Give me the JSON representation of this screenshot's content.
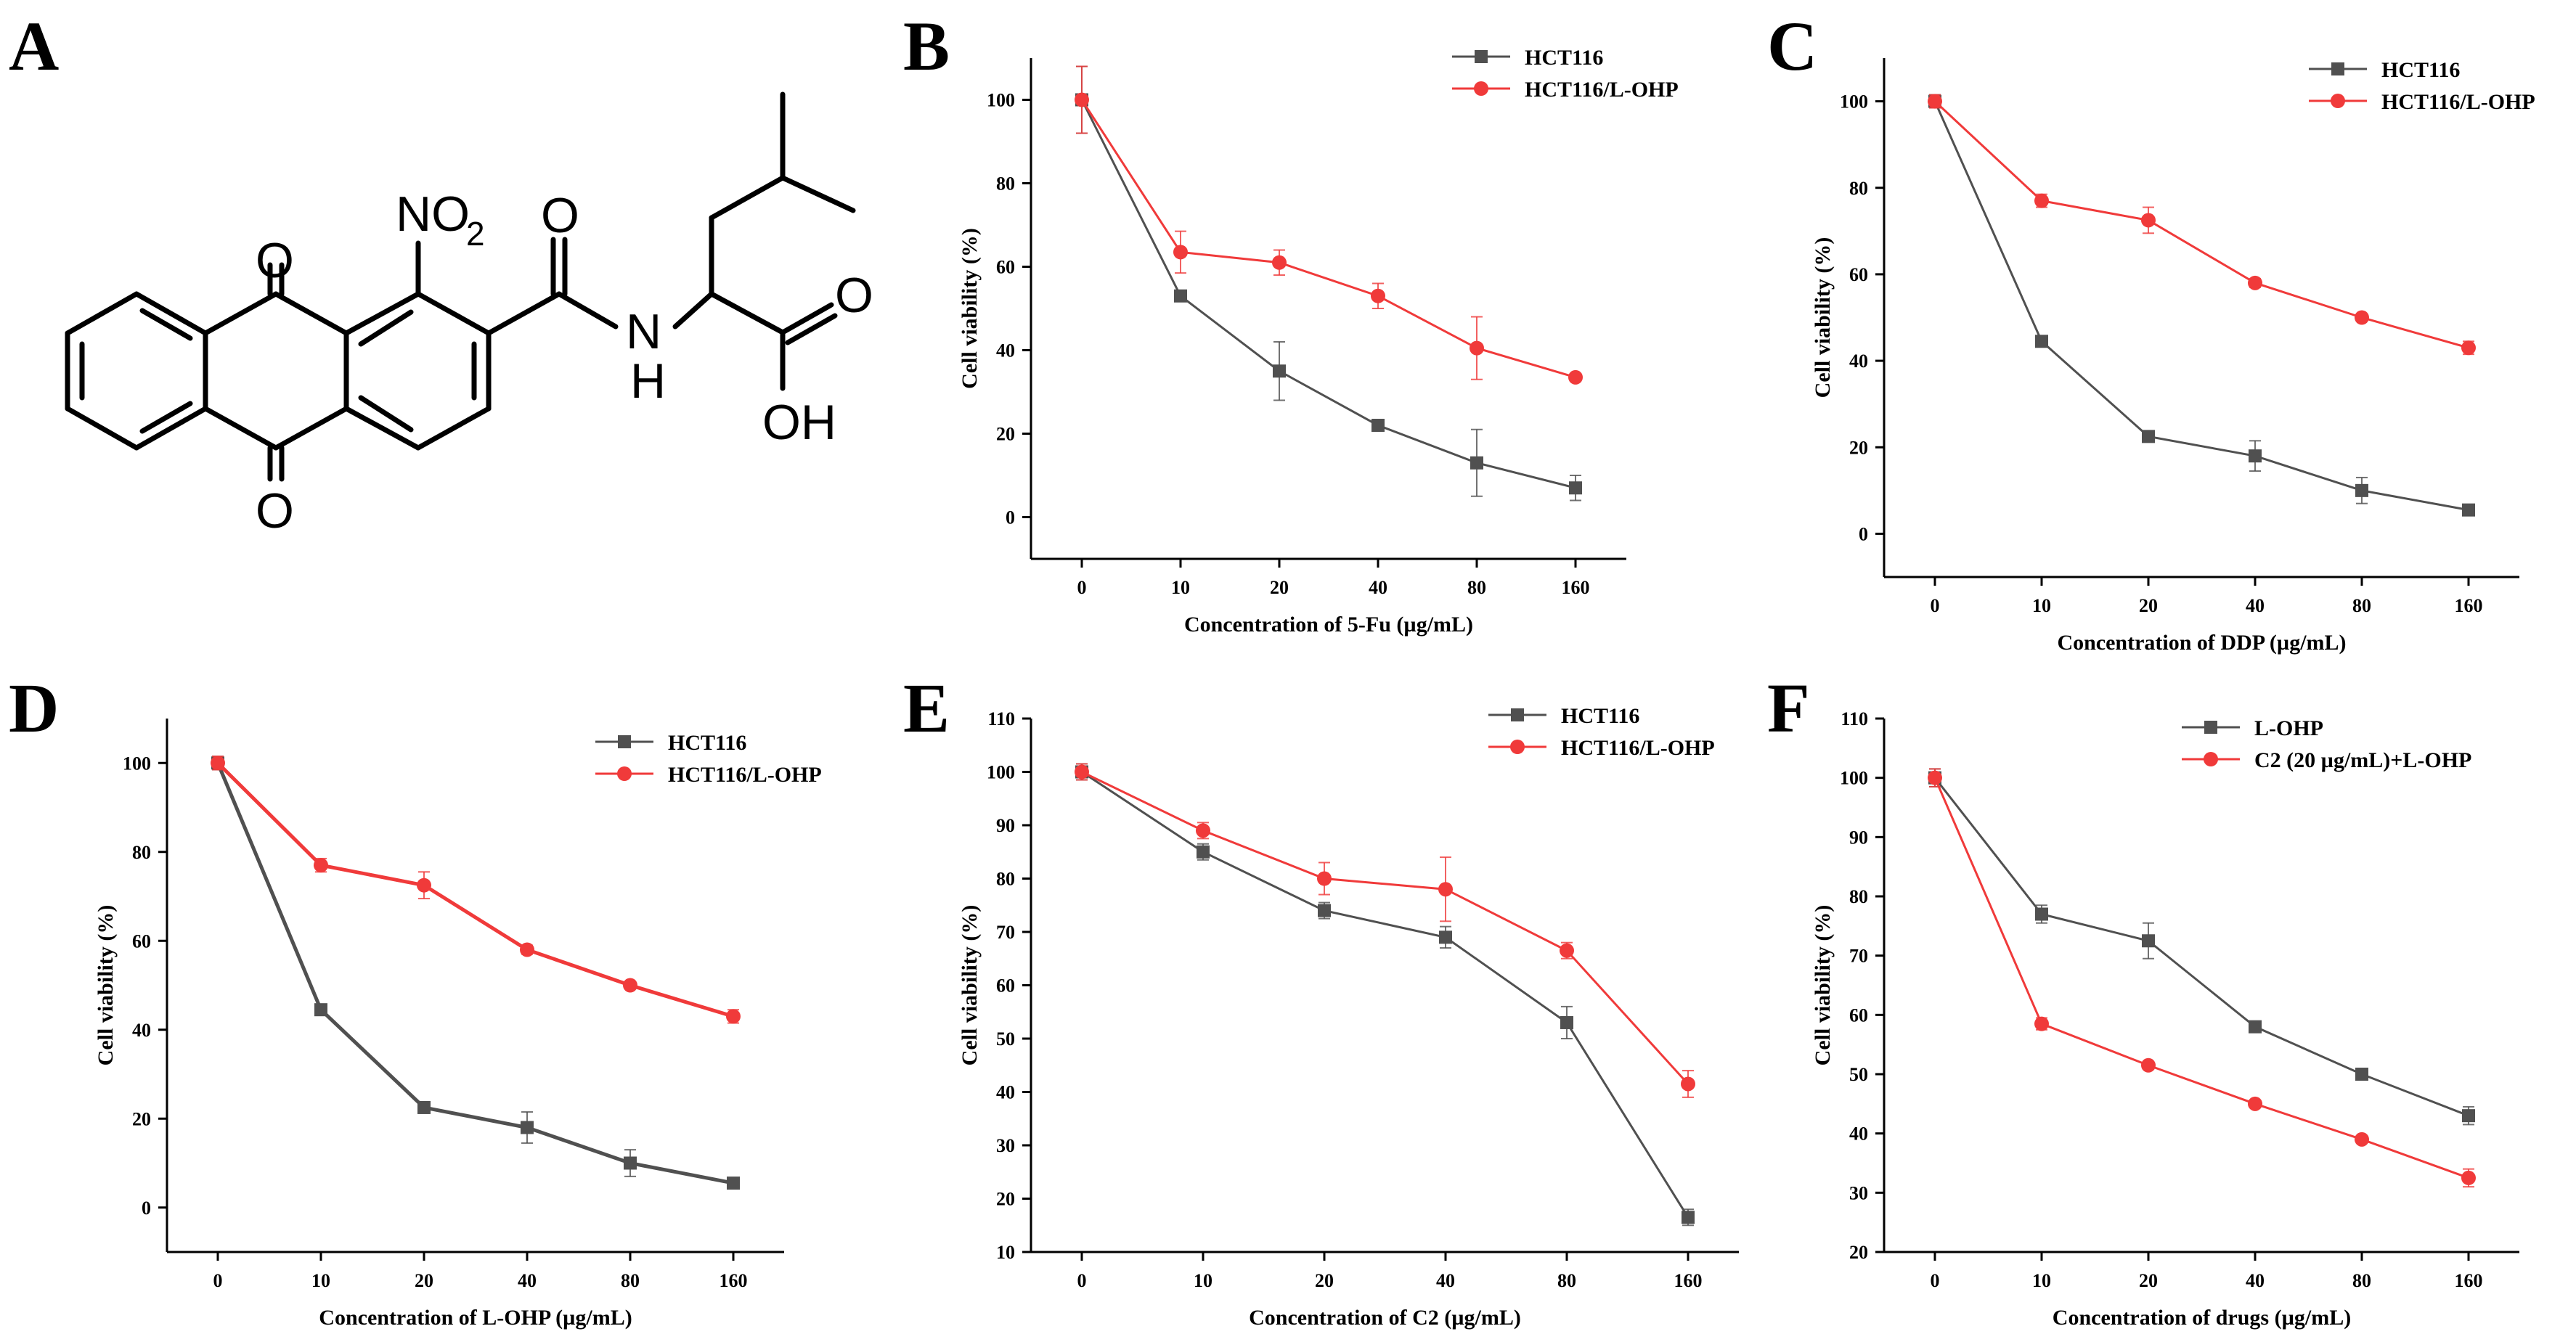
{
  "panels": {
    "A": "A",
    "B": "B",
    "C": "C",
    "D": "D",
    "E": "E",
    "F": "F"
  },
  "structure": {
    "atoms": {
      "O_top": "O",
      "O_bottom": "O",
      "NO": "NO",
      "sub2": "2",
      "O_amide": "O",
      "N": "N",
      "H": "H",
      "O_acid": "O",
      "OH": "OH"
    }
  },
  "chart_data": [
    {
      "panel": "B",
      "type": "line",
      "categories": [
        "0",
        "10",
        "20",
        "40",
        "80",
        "160"
      ],
      "xlabel": "Concentration of 5-Fu (µg/mL)",
      "ylabel": "Cell viability (%)",
      "yticks": [
        0,
        20,
        40,
        60,
        80,
        100
      ],
      "ylim": [
        -10,
        110
      ],
      "series": [
        {
          "name": "HCT116",
          "marker": "square",
          "color": "#505050",
          "values": [
            100,
            53,
            35,
            22,
            13,
            7
          ],
          "errors": [
            8,
            1,
            7,
            1,
            8,
            3
          ]
        },
        {
          "name": "HCT116/L-OHP",
          "marker": "circle",
          "color": "#f03a3a",
          "values": [
            100,
            63.5,
            61,
            53,
            40.5,
            33.5
          ],
          "errors": [
            8,
            5,
            3,
            3,
            7.5,
            0.5
          ]
        }
      ],
      "legend": "top-right"
    },
    {
      "panel": "C",
      "type": "line",
      "categories": [
        "0",
        "10",
        "20",
        "40",
        "80",
        "160"
      ],
      "xlabel": "Concentration of DDP (µg/mL)",
      "ylabel": "Cell viability (%)",
      "yticks": [
        0,
        20,
        40,
        60,
        80,
        100
      ],
      "ylim": [
        -10,
        110
      ],
      "series": [
        {
          "name": "HCT116",
          "marker": "square",
          "color": "#505050",
          "values": [
            100,
            44.5,
            22.5,
            18,
            10,
            5.5
          ],
          "errors": [
            1.5,
            1,
            1,
            3.5,
            3,
            0.5
          ]
        },
        {
          "name": "HCT116/L-OHP",
          "marker": "circle",
          "color": "#f03a3a",
          "values": [
            100,
            77,
            72.5,
            58,
            50,
            43
          ],
          "errors": [
            1.5,
            1.5,
            3,
            1,
            0.5,
            1.5
          ]
        }
      ],
      "legend": "top-right"
    },
    {
      "panel": "D",
      "type": "line",
      "categories": [
        "0",
        "10",
        "20",
        "40",
        "80",
        "160"
      ],
      "xlabel": "Concentration of L-OHP (µg/mL)",
      "ylabel": "Cell viability (%)",
      "yticks": [
        0,
        20,
        40,
        60,
        80,
        100
      ],
      "ylim": [
        -10,
        110
      ],
      "series": [
        {
          "name": "HCT116",
          "marker": "square",
          "color": "#505050",
          "values": [
            100,
            44.5,
            22.5,
            18,
            10,
            5.5
          ],
          "errors": [
            1.5,
            1,
            1,
            3.5,
            3,
            0.5
          ]
        },
        {
          "name": "HCT116/L-OHP",
          "marker": "circle",
          "color": "#f03a3a",
          "values": [
            100,
            77,
            72.5,
            58,
            50,
            43
          ],
          "errors": [
            1.5,
            1.5,
            3,
            1,
            0.5,
            1.5
          ]
        }
      ],
      "legend": "top-right"
    },
    {
      "panel": "E",
      "type": "line",
      "categories": [
        "0",
        "10",
        "20",
        "40",
        "80",
        "160"
      ],
      "xlabel": "Concentration of C2 (µg/mL)",
      "ylabel": "Cell viability (%)",
      "yticks": [
        10,
        20,
        30,
        40,
        50,
        60,
        70,
        80,
        90,
        100,
        110
      ],
      "ylim": [
        10,
        110
      ],
      "series": [
        {
          "name": "HCT116",
          "marker": "square",
          "color": "#505050",
          "values": [
            100,
            85,
            74,
            69,
            53,
            16.5
          ],
          "errors": [
            1.5,
            1.5,
            1.5,
            2,
            3,
            1.5
          ]
        },
        {
          "name": "HCT116/L-OHP",
          "marker": "circle",
          "color": "#f03a3a",
          "values": [
            100,
            89,
            80,
            78,
            66.5,
            41.5
          ],
          "errors": [
            1.5,
            1.5,
            3,
            6,
            1.5,
            2.5
          ]
        }
      ],
      "legend": "top-right"
    },
    {
      "panel": "F",
      "type": "line",
      "categories": [
        "0",
        "10",
        "20",
        "40",
        "80",
        "160"
      ],
      "xlabel": "Concentration of drugs (µg/mL)",
      "ylabel": "Cell viability (%)",
      "yticks": [
        20,
        30,
        40,
        50,
        60,
        70,
        80,
        90,
        100,
        110
      ],
      "ylim": [
        20,
        110
      ],
      "series": [
        {
          "name": "L-OHP",
          "marker": "square",
          "color": "#505050",
          "values": [
            100,
            77,
            72.5,
            58,
            50,
            43
          ],
          "errors": [
            1.5,
            1.5,
            3,
            0.5,
            0.5,
            1.5
          ]
        },
        {
          "name": "C2 (20 µg/mL)+L-OHP",
          "marker": "circle",
          "color": "#f03a3a",
          "values": [
            100,
            58.5,
            51.5,
            45,
            39,
            32.5
          ],
          "errors": [
            1.5,
            1,
            0.5,
            0.5,
            0.5,
            1.5
          ]
        }
      ],
      "legend": "top-left"
    }
  ]
}
